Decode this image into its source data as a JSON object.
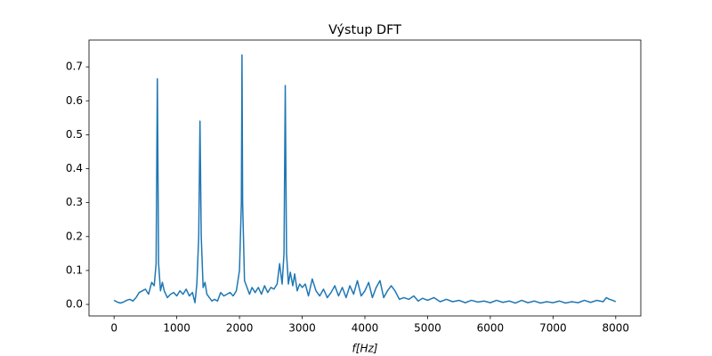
{
  "chart_data": {
    "type": "line",
    "title": "Výstup DFT",
    "x_label": "f[Hz]",
    "x": [
      0,
      50,
      100,
      150,
      200,
      250,
      300,
      350,
      400,
      450,
      500,
      550,
      600,
      640,
      670,
      690,
      710,
      740,
      770,
      800,
      850,
      900,
      950,
      1000,
      1050,
      1100,
      1150,
      1200,
      1250,
      1290,
      1320,
      1350,
      1370,
      1390,
      1420,
      1450,
      1480,
      1520,
      1560,
      1600,
      1650,
      1700,
      1750,
      1800,
      1850,
      1900,
      1950,
      2000,
      2030,
      2040,
      2050,
      2080,
      2120,
      2160,
      2200,
      2250,
      2300,
      2350,
      2400,
      2450,
      2500,
      2550,
      2600,
      2640,
      2680,
      2710,
      2730,
      2750,
      2780,
      2810,
      2850,
      2880,
      2920,
      2960,
      3000,
      3050,
      3100,
      3160,
      3220,
      3280,
      3340,
      3400,
      3460,
      3520,
      3580,
      3640,
      3700,
      3760,
      3820,
      3880,
      3940,
      4000,
      4060,
      4120,
      4180,
      4240,
      4300,
      4360,
      4420,
      4480,
      4550,
      4620,
      4700,
      4780,
      4850,
      4920,
      5000,
      5100,
      5200,
      5300,
      5400,
      5500,
      5600,
      5700,
      5800,
      5900,
      6000,
      6100,
      6200,
      6300,
      6400,
      6500,
      6600,
      6700,
      6800,
      6900,
      7000,
      7100,
      7200,
      7300,
      7400,
      7500,
      7600,
      7700,
      7800,
      7850,
      7900,
      7950,
      8000
    ],
    "series": [
      {
        "color": "#1f77b4",
        "values": [
          0.012,
          0.007,
          0.004,
          0.007,
          0.012,
          0.015,
          0.01,
          0.02,
          0.035,
          0.04,
          0.045,
          0.03,
          0.065,
          0.055,
          0.12,
          0.665,
          0.12,
          0.04,
          0.065,
          0.04,
          0.02,
          0.03,
          0.035,
          0.025,
          0.04,
          0.03,
          0.045,
          0.025,
          0.035,
          0.005,
          0.06,
          0.2,
          0.54,
          0.2,
          0.05,
          0.065,
          0.03,
          0.02,
          0.01,
          0.015,
          0.01,
          0.035,
          0.025,
          0.03,
          0.035,
          0.025,
          0.04,
          0.1,
          0.3,
          0.735,
          0.3,
          0.07,
          0.05,
          0.03,
          0.05,
          0.035,
          0.05,
          0.03,
          0.055,
          0.035,
          0.05,
          0.045,
          0.06,
          0.12,
          0.06,
          0.15,
          0.645,
          0.15,
          0.06,
          0.095,
          0.055,
          0.09,
          0.04,
          0.06,
          0.05,
          0.06,
          0.025,
          0.075,
          0.04,
          0.025,
          0.045,
          0.02,
          0.035,
          0.055,
          0.025,
          0.05,
          0.02,
          0.055,
          0.03,
          0.07,
          0.025,
          0.04,
          0.065,
          0.02,
          0.05,
          0.07,
          0.02,
          0.04,
          0.055,
          0.04,
          0.015,
          0.02,
          0.015,
          0.025,
          0.01,
          0.018,
          0.012,
          0.02,
          0.008,
          0.015,
          0.008,
          0.012,
          0.005,
          0.012,
          0.007,
          0.01,
          0.005,
          0.012,
          0.006,
          0.01,
          0.004,
          0.012,
          0.005,
          0.01,
          0.004,
          0.008,
          0.005,
          0.01,
          0.004,
          0.008,
          0.005,
          0.012,
          0.006,
          0.012,
          0.008,
          0.02,
          0.015,
          0.012,
          0.008
        ]
      }
    ],
    "xlim": [
      -400,
      8400
    ],
    "ylim": [
      -0.034,
      0.779
    ],
    "xticks": [
      0,
      1000,
      2000,
      3000,
      4000,
      5000,
      6000,
      7000,
      8000
    ],
    "yticks": [
      {
        "value": 0,
        "label": "0.0"
      },
      0.1,
      0.2,
      0.3,
      0.4,
      0.5,
      0.6,
      0.7
    ]
  }
}
